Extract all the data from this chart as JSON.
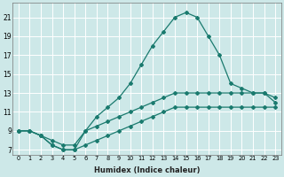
{
  "xlabel": "Humidex (Indice chaleur)",
  "xlim": [
    -0.5,
    23.5
  ],
  "ylim": [
    6.5,
    22.5
  ],
  "xticks": [
    0,
    1,
    2,
    3,
    4,
    5,
    6,
    7,
    8,
    9,
    10,
    11,
    12,
    13,
    14,
    15,
    16,
    17,
    18,
    19,
    20,
    21,
    22,
    23
  ],
  "yticks": [
    7,
    9,
    11,
    13,
    15,
    17,
    19,
    21
  ],
  "background_color": "#cde8e8",
  "grid_color": "#ffffff",
  "line_color": "#1a7a6e",
  "line_main_x": [
    0,
    1,
    2,
    3,
    4,
    5,
    6,
    7,
    8,
    9,
    10,
    11,
    12,
    13,
    14,
    15,
    16,
    17,
    18,
    19,
    20,
    21,
    22,
    23
  ],
  "line_main_y": [
    9.0,
    9.0,
    8.5,
    7.5,
    7.0,
    7.0,
    9.0,
    10.5,
    11.5,
    12.5,
    14.0,
    16.0,
    18.0,
    19.5,
    21.0,
    21.5,
    21.0,
    19.0,
    17.0,
    14.0,
    13.5,
    13.0,
    13.0,
    12.0
  ],
  "line_mid_x": [
    0,
    1,
    2,
    3,
    4,
    5,
    6,
    7,
    8,
    9,
    10,
    11,
    12,
    13,
    14,
    15,
    16,
    17,
    18,
    19,
    20,
    21,
    22,
    23
  ],
  "line_mid_y": [
    9.0,
    9.0,
    8.5,
    8.0,
    7.5,
    7.5,
    9.0,
    9.5,
    10.0,
    10.5,
    11.0,
    11.5,
    12.0,
    12.5,
    13.0,
    13.0,
    13.0,
    13.0,
    13.0,
    13.0,
    13.0,
    13.0,
    13.0,
    12.5
  ],
  "line_bot_x": [
    0,
    1,
    2,
    3,
    4,
    5,
    6,
    7,
    8,
    9,
    10,
    11,
    12,
    13,
    14,
    15,
    16,
    17,
    18,
    19,
    20,
    21,
    22,
    23
  ],
  "line_bot_y": [
    9.0,
    9.0,
    8.5,
    7.5,
    7.0,
    7.0,
    7.5,
    8.0,
    8.5,
    9.0,
    9.5,
    10.0,
    10.5,
    11.0,
    11.5,
    11.5,
    11.5,
    11.5,
    11.5,
    11.5,
    11.5,
    11.5,
    11.5,
    11.5
  ]
}
